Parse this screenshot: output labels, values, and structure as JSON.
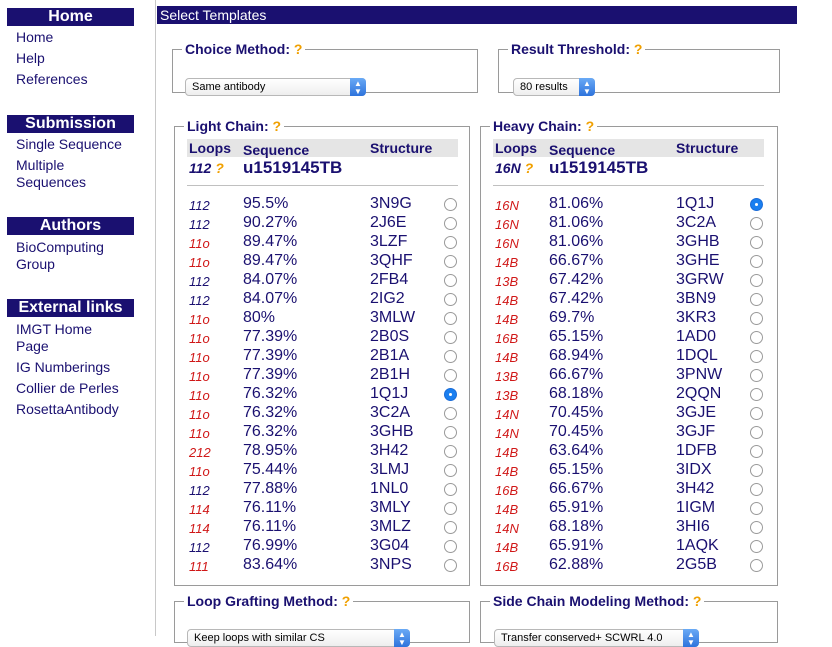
{
  "sidebar": {
    "sections": [
      {
        "title": "Home",
        "links": [
          "Home",
          "Help",
          "References"
        ]
      },
      {
        "title": "Submission",
        "links": [
          "Single Sequence",
          "Multiple Sequences"
        ]
      },
      {
        "title": "Authors",
        "links": [
          "BioComputing Group"
        ]
      },
      {
        "title": "External links",
        "links": [
          "IMGT Home Page",
          "IG Numberings",
          "Collier de Perles",
          "RosettaAntibody"
        ]
      }
    ]
  },
  "main": {
    "title": "Select Templates",
    "help_mark": "?",
    "choice_method": {
      "label": "Choice Method:",
      "value": "Same antibody"
    },
    "result_threshold": {
      "label": "Result Threshold:",
      "value": "80 results"
    },
    "light_chain": {
      "label": "Light Chain:",
      "col_loops": "Loops",
      "col_sequence": "Sequence",
      "col_structure": "Structure",
      "query_loops": "112",
      "query_name": "u1519145TB",
      "rows": [
        {
          "loops": "112",
          "pct": "95.5%",
          "structure": "3N9G",
          "selected": false,
          "loop_color": "#1a1070"
        },
        {
          "loops": "112",
          "pct": "90.27%",
          "structure": "2J6E",
          "selected": false,
          "loop_color": "#1a1070"
        },
        {
          "loops": "11o",
          "pct": "89.47%",
          "structure": "3LZF",
          "selected": false,
          "loop_color": "#d01818"
        },
        {
          "loops": "11o",
          "pct": "89.47%",
          "structure": "3QHF",
          "selected": false,
          "loop_color": "#d01818"
        },
        {
          "loops": "112",
          "pct": "84.07%",
          "structure": "2FB4",
          "selected": false,
          "loop_color": "#1a1070"
        },
        {
          "loops": "112",
          "pct": "84.07%",
          "structure": "2IG2",
          "selected": false,
          "loop_color": "#1a1070"
        },
        {
          "loops": "11o",
          "pct": "80%",
          "structure": "3MLW",
          "selected": false,
          "loop_color": "#d01818"
        },
        {
          "loops": "11o",
          "pct": "77.39%",
          "structure": "2B0S",
          "selected": false,
          "loop_color": "#d01818"
        },
        {
          "loops": "11o",
          "pct": "77.39%",
          "structure": "2B1A",
          "selected": false,
          "loop_color": "#d01818"
        },
        {
          "loops": "11o",
          "pct": "77.39%",
          "structure": "2B1H",
          "selected": false,
          "loop_color": "#d01818"
        },
        {
          "loops": "11o",
          "pct": "76.32%",
          "structure": "1Q1J",
          "selected": true,
          "loop_color": "#d01818"
        },
        {
          "loops": "11o",
          "pct": "76.32%",
          "structure": "3C2A",
          "selected": false,
          "loop_color": "#d01818"
        },
        {
          "loops": "11o",
          "pct": "76.32%",
          "structure": "3GHB",
          "selected": false,
          "loop_color": "#d01818"
        },
        {
          "loops": "212",
          "pct": "78.95%",
          "structure": "3H42",
          "selected": false,
          "loop_color": "#d01818"
        },
        {
          "loops": "11o",
          "pct": "75.44%",
          "structure": "3LMJ",
          "selected": false,
          "loop_color": "#d01818"
        },
        {
          "loops": "112",
          "pct": "77.88%",
          "structure": "1NL0",
          "selected": false,
          "loop_color": "#1a1070"
        },
        {
          "loops": "114",
          "pct": "76.11%",
          "structure": "3MLY",
          "selected": false,
          "loop_color": "#d01818"
        },
        {
          "loops": "114",
          "pct": "76.11%",
          "structure": "3MLZ",
          "selected": false,
          "loop_color": "#d01818"
        },
        {
          "loops": "112",
          "pct": "76.99%",
          "structure": "3G04",
          "selected": false,
          "loop_color": "#1a1070"
        },
        {
          "loops": "111",
          "pct": "83.64%",
          "structure": "3NPS",
          "selected": false,
          "loop_color": "#d01818"
        }
      ]
    },
    "heavy_chain": {
      "label": "Heavy Chain:",
      "col_loops": "Loops",
      "col_sequence": "Sequence",
      "col_structure": "Structure",
      "query_loops": "16N",
      "query_name": "u1519145TB",
      "rows": [
        {
          "loops": "16N",
          "pct": "81.06%",
          "structure": "1Q1J",
          "selected": true,
          "loop_color": "#d01818"
        },
        {
          "loops": "16N",
          "pct": "81.06%",
          "structure": "3C2A",
          "selected": false,
          "loop_color": "#d01818"
        },
        {
          "loops": "16N",
          "pct": "81.06%",
          "structure": "3GHB",
          "selected": false,
          "loop_color": "#d01818"
        },
        {
          "loops": "14B",
          "pct": "66.67%",
          "structure": "3GHE",
          "selected": false,
          "loop_color": "#d01818"
        },
        {
          "loops": "13B",
          "pct": "67.42%",
          "structure": "3GRW",
          "selected": false,
          "loop_color": "#d01818"
        },
        {
          "loops": "14B",
          "pct": "67.42%",
          "structure": "3BN9",
          "selected": false,
          "loop_color": "#d01818"
        },
        {
          "loops": "14B",
          "pct": "69.7%",
          "structure": "3KR3",
          "selected": false,
          "loop_color": "#d01818"
        },
        {
          "loops": "16B",
          "pct": "65.15%",
          "structure": "1AD0",
          "selected": false,
          "loop_color": "#d01818"
        },
        {
          "loops": "14B",
          "pct": "68.94%",
          "structure": "1DQL",
          "selected": false,
          "loop_color": "#d01818"
        },
        {
          "loops": "13B",
          "pct": "66.67%",
          "structure": "3PNW",
          "selected": false,
          "loop_color": "#d01818"
        },
        {
          "loops": "13B",
          "pct": "68.18%",
          "structure": "2QQN",
          "selected": false,
          "loop_color": "#d01818"
        },
        {
          "loops": "14N",
          "pct": "70.45%",
          "structure": "3GJE",
          "selected": false,
          "loop_color": "#d01818"
        },
        {
          "loops": "14N",
          "pct": "70.45%",
          "structure": "3GJF",
          "selected": false,
          "loop_color": "#d01818"
        },
        {
          "loops": "14B",
          "pct": "63.64%",
          "structure": "1DFB",
          "selected": false,
          "loop_color": "#d01818"
        },
        {
          "loops": "14B",
          "pct": "65.15%",
          "structure": "3IDX",
          "selected": false,
          "loop_color": "#d01818"
        },
        {
          "loops": "16B",
          "pct": "66.67%",
          "structure": "3H42",
          "selected": false,
          "loop_color": "#d01818"
        },
        {
          "loops": "14B",
          "pct": "65.91%",
          "structure": "1IGM",
          "selected": false,
          "loop_color": "#d01818"
        },
        {
          "loops": "14N",
          "pct": "68.18%",
          "structure": "3HI6",
          "selected": false,
          "loop_color": "#d01818"
        },
        {
          "loops": "14B",
          "pct": "65.91%",
          "structure": "1AQK",
          "selected": false,
          "loop_color": "#d01818"
        },
        {
          "loops": "16B",
          "pct": "62.88%",
          "structure": "2G5B",
          "selected": false,
          "loop_color": "#d01818"
        }
      ]
    },
    "loop_grafting": {
      "label": "Loop Grafting Method:",
      "value": "Keep loops with similar CS"
    },
    "side_chain": {
      "label": "Side Chain Modeling Method:",
      "value": "Transfer conserved+ SCWRL 4.0"
    }
  }
}
